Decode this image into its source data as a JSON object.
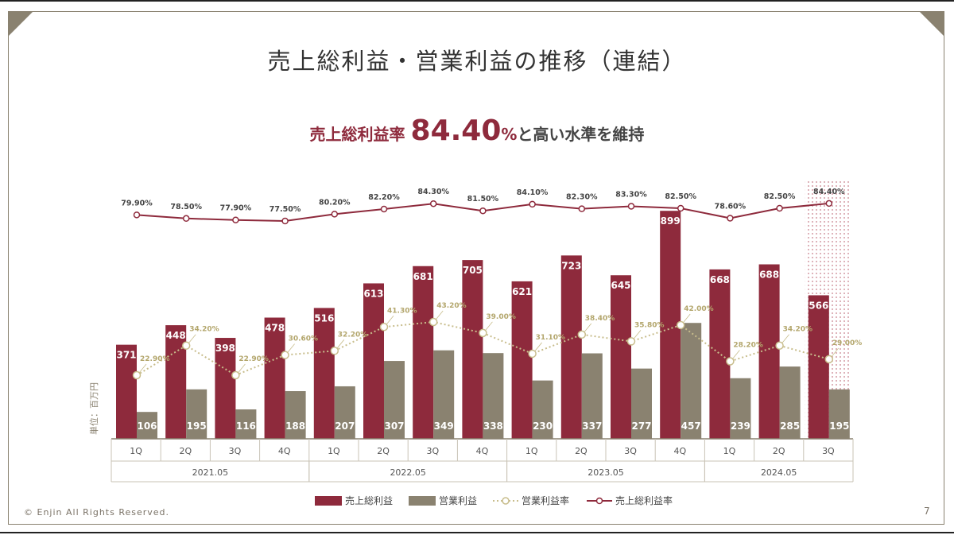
{
  "slide": {
    "title": "売上総利益・営業利益の推移（連結）",
    "subtitle_prefix": "売上総利益率",
    "subtitle_value": "84.40",
    "subtitle_pct": "%",
    "subtitle_suffix": "と高い水準を維持",
    "footer": "© Enjin All Rights Reserved.",
    "page_number": "7"
  },
  "colors": {
    "gross": "#8e2a3c",
    "operating": "#8a8270",
    "op_margin_line": "#c8bd8c",
    "gross_margin_line": "#8e2a3c",
    "highlight": "#b0485a"
  },
  "chart_data": {
    "type": "bar",
    "ylabel": "単位：百万円",
    "categories": [
      "1Q",
      "2Q",
      "3Q",
      "4Q",
      "1Q",
      "2Q",
      "3Q",
      "4Q",
      "1Q",
      "2Q",
      "3Q",
      "4Q",
      "1Q",
      "2Q",
      "3Q"
    ],
    "fiscal_years": [
      {
        "label": "2021.05",
        "count": 4
      },
      {
        "label": "2022.05",
        "count": 4
      },
      {
        "label": "2023.05",
        "count": 4
      },
      {
        "label": "2024.05",
        "count": 3
      }
    ],
    "highlighted_category_index": 14,
    "series": [
      {
        "name": "売上総利益",
        "type": "bar",
        "values": [
          371,
          448,
          398,
          478,
          516,
          613,
          681,
          705,
          621,
          723,
          645,
          899,
          668,
          688,
          566
        ]
      },
      {
        "name": "営業利益",
        "type": "bar",
        "values": [
          106,
          195,
          116,
          188,
          207,
          307,
          349,
          338,
          230,
          337,
          277,
          457,
          239,
          285,
          195
        ]
      },
      {
        "name": "営業利益率",
        "type": "line",
        "unit": "%",
        "values": [
          22.9,
          34.2,
          22.9,
          30.6,
          32.2,
          41.3,
          43.2,
          39.0,
          31.1,
          38.4,
          35.8,
          42.0,
          28.2,
          34.2,
          29.0
        ],
        "labels": [
          "22.90%",
          "34.20%",
          "22.90%",
          "30.60%",
          "32.20%",
          "41.30%",
          "43.20%",
          "39.00%",
          "31.10%",
          "38.40%",
          "35.80%",
          "42.00%",
          "28.20%",
          "34.20%",
          "29.00%"
        ]
      },
      {
        "name": "売上総利益率",
        "type": "line",
        "unit": "%",
        "values": [
          79.9,
          78.5,
          77.9,
          77.5,
          80.2,
          82.2,
          84.3,
          81.5,
          84.1,
          82.3,
          83.3,
          82.5,
          78.6,
          82.5,
          84.4
        ],
        "labels": [
          "79.90%",
          "78.50%",
          "77.90%",
          "77.50%",
          "80.20%",
          "82.20%",
          "84.30%",
          "81.50%",
          "84.10%",
          "82.30%",
          "83.30%",
          "82.50%",
          "78.60%",
          "82.50%",
          "84.40%"
        ]
      }
    ],
    "legend_position": "bottom"
  }
}
